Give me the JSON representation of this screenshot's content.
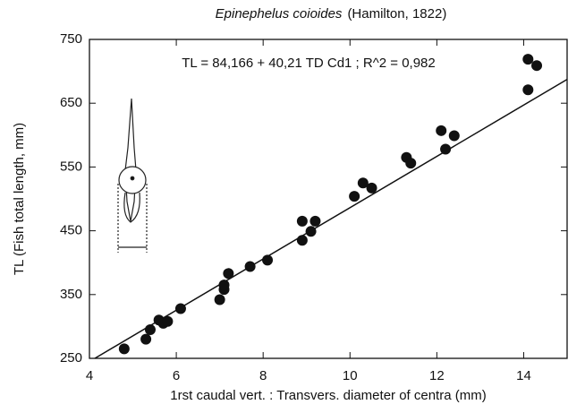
{
  "chart_data": {
    "type": "scatter",
    "title_species": "Epinephelus coioides",
    "title_author": "(Hamilton, 1822)",
    "annotation": "TL = 84,166 + 40,21 TD Cd1 ;  R^2 = 0,982",
    "x_label": "1rst caudal vert. : Transvers. diameter of centra (mm)",
    "y_label": "TL (Fish total length, mm)",
    "xlim": [
      4,
      15
    ],
    "ylim": [
      250,
      750
    ],
    "xticks": [
      4,
      6,
      8,
      10,
      12,
      14
    ],
    "yticks": [
      250,
      350,
      450,
      550,
      650,
      750
    ],
    "color": "#111111",
    "trendline": {
      "intercept": 84.166,
      "slope": 40.21
    },
    "x": [
      4.8,
      5.3,
      5.4,
      5.6,
      5.7,
      5.8,
      6.1,
      7.0,
      7.1,
      7.1,
      7.2,
      7.7,
      8.1,
      8.9,
      8.9,
      9.1,
      9.2,
      10.1,
      10.3,
      10.5,
      11.3,
      11.4,
      12.1,
      12.2,
      12.4,
      14.1,
      14.3,
      14.1
    ],
    "values": [
      265,
      280,
      295,
      310,
      305,
      308,
      328,
      342,
      358,
      365,
      383,
      394,
      404,
      435,
      465,
      449,
      465,
      504,
      525,
      517,
      565,
      556,
      607,
      578,
      599,
      719,
      709,
      671
    ]
  }
}
